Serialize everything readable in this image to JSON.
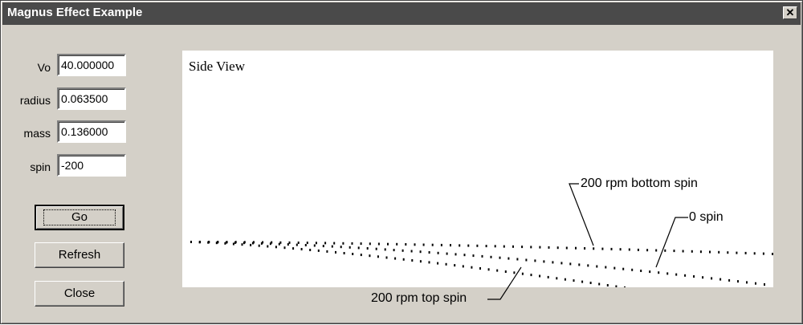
{
  "window": {
    "title": "Magnus Effect Example",
    "close_glyph": "✕"
  },
  "fields": [
    {
      "label": "Vo",
      "value": "40.000000"
    },
    {
      "label": "radius",
      "value": "0.063500"
    },
    {
      "label": "mass",
      "value": "0.136000"
    },
    {
      "label": "spin",
      "value": "-200"
    }
  ],
  "buttons": {
    "go": "Go",
    "refresh": "Refresh",
    "close": "Close"
  },
  "plot": {
    "title": "Side View",
    "annotations": {
      "bottom_spin": "200 rpm bottom spin",
      "zero_spin": "0 spin",
      "top_spin": "200 rpm top spin"
    }
  },
  "colors": {
    "window_bg": "#d4d0c8",
    "titlebar": "#4a4a4a",
    "plot_bg": "#ffffff",
    "ink": "#000000"
  }
}
